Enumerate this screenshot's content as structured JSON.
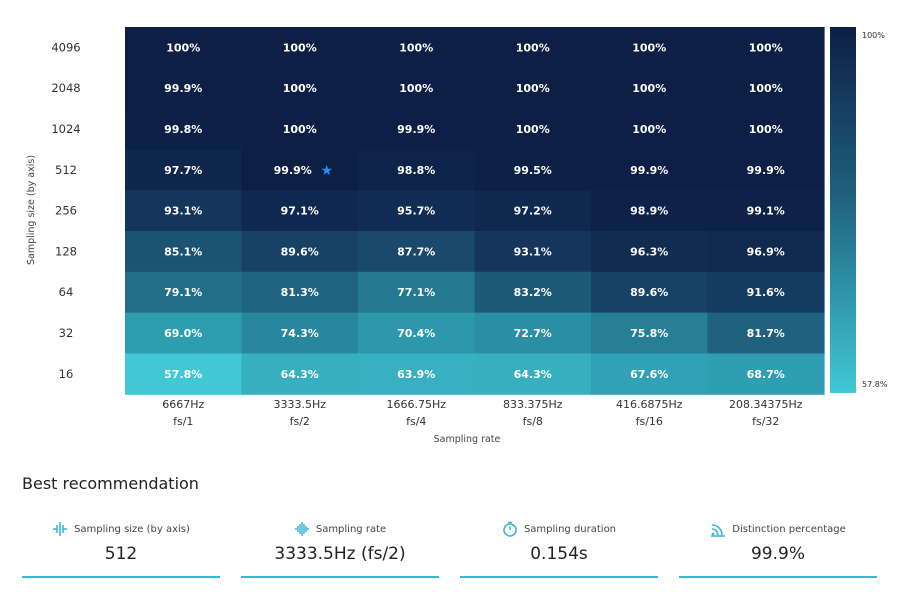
{
  "chart_data": {
    "type": "heatmap",
    "title": "",
    "xlabel": "Sampling rate",
    "ylabel": "Sampling size (by axis)",
    "x_categories": [
      {
        "rate": "6667Hz",
        "divisor": "fs/1"
      },
      {
        "rate": "3333.5Hz",
        "divisor": "fs/2"
      },
      {
        "rate": "1666.75Hz",
        "divisor": "fs/4"
      },
      {
        "rate": "833.375Hz",
        "divisor": "fs/8"
      },
      {
        "rate": "416.6875Hz",
        "divisor": "fs/16"
      },
      {
        "rate": "208.34375Hz",
        "divisor": "fs/32"
      }
    ],
    "y_categories": [
      "4096",
      "2048",
      "1024",
      "512",
      "256",
      "128",
      "64",
      "32",
      "16"
    ],
    "values": [
      [
        100,
        100,
        100,
        100,
        100,
        100
      ],
      [
        99.9,
        100,
        100,
        100,
        100,
        100
      ],
      [
        99.8,
        100,
        99.9,
        100,
        100,
        100
      ],
      [
        97.7,
        99.9,
        98.8,
        99.5,
        99.9,
        99.9
      ],
      [
        93.1,
        97.1,
        95.7,
        97.2,
        98.9,
        99.1
      ],
      [
        85.1,
        89.6,
        87.7,
        93.1,
        96.3,
        96.9
      ],
      [
        79.1,
        81.3,
        77.1,
        83.2,
        89.6,
        91.6
      ],
      [
        69.0,
        74.3,
        70.4,
        72.7,
        75.8,
        81.7
      ],
      [
        57.8,
        64.3,
        63.9,
        64.3,
        67.6,
        68.7
      ]
    ],
    "labels": [
      [
        "100%",
        "100%",
        "100%",
        "100%",
        "100%",
        "100%"
      ],
      [
        "99.9%",
        "100%",
        "100%",
        "100%",
        "100%",
        "100%"
      ],
      [
        "99.8%",
        "100%",
        "99.9%",
        "100%",
        "100%",
        "100%"
      ],
      [
        "97.7%",
        "99.9%",
        "98.8%",
        "99.5%",
        "99.9%",
        "99.9%"
      ],
      [
        "93.1%",
        "97.1%",
        "95.7%",
        "97.2%",
        "98.9%",
        "99.1%"
      ],
      [
        "85.1%",
        "89.6%",
        "87.7%",
        "93.1%",
        "96.3%",
        "96.9%"
      ],
      [
        "79.1%",
        "81.3%",
        "77.1%",
        "83.2%",
        "89.6%",
        "91.6%"
      ],
      [
        "69.0%",
        "74.3%",
        "70.4%",
        "72.7%",
        "75.8%",
        "81.7%"
      ],
      [
        "57.8%",
        "64.3%",
        "63.9%",
        "64.3%",
        "67.6%",
        "68.7%"
      ]
    ],
    "best_cell": {
      "row": 3,
      "col": 1
    },
    "colorbar": {
      "min": 57.8,
      "max": 100,
      "min_label": "57.8%",
      "max_label": "100%"
    },
    "colors": {
      "low": "#40c8d4",
      "high": "#0d1f45",
      "star": "#2a8df0"
    }
  },
  "recommendation": {
    "title": "Best recommendation",
    "cards": [
      {
        "label": "Sampling size (by axis)",
        "value": "512",
        "icon": "sampling-size-icon"
      },
      {
        "label": "Sampling rate",
        "value": "3333.5Hz (fs/2)",
        "icon": "waveform-icon"
      },
      {
        "label": "Sampling duration",
        "value": "0.154s",
        "icon": "stopwatch-icon"
      },
      {
        "label": "Distinction percentage",
        "value": "99.9%",
        "icon": "signal-icon"
      }
    ],
    "accent": "#3ab8d6"
  }
}
